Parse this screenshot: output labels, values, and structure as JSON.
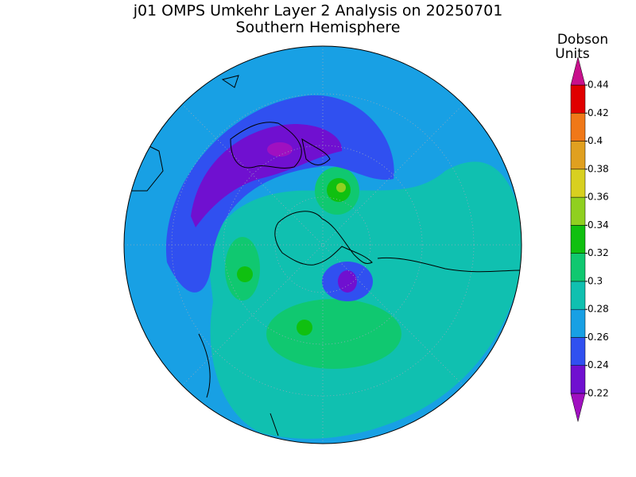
{
  "title": "j01 OMPS Umkehr Layer 2 Analysis on 20250701",
  "subtitle": "Southern Hemisphere",
  "colorbar": {
    "unit_label": [
      "Dobson",
      "Units"
    ],
    "ticks": [
      0.22,
      0.24,
      0.26,
      0.28,
      0.3,
      0.32,
      0.34,
      0.36,
      0.38,
      0.4,
      0.42,
      0.44
    ],
    "colors": [
      "#7010d0",
      "#3050f0",
      "#18a0e4",
      "#10c0b0",
      "#10c870",
      "#10c010",
      "#90d020",
      "#d8d020",
      "#e0a020",
      "#f07818",
      "#e00000"
    ],
    "under_color": "#a010c0",
    "over_color": "#c8108c"
  }
}
